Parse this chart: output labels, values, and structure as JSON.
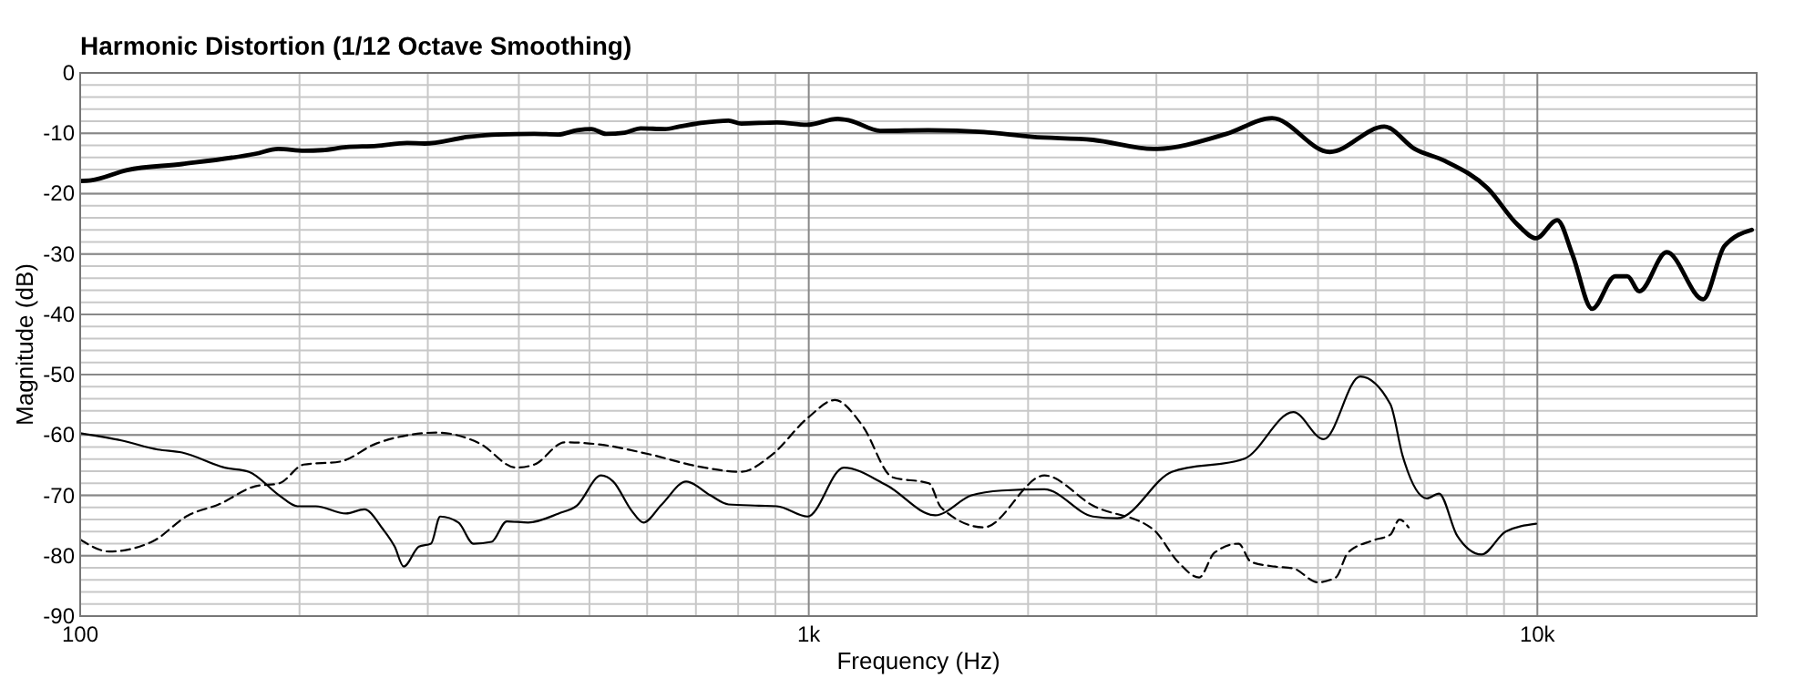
{
  "chart_data": {
    "type": "line",
    "title": "Harmonic Distortion (1/12 Octave Smoothing)",
    "xlabel": "Frequency (Hz)",
    "ylabel": "Magnitude (dB)",
    "log": "x",
    "grid": true,
    "xlim": [
      100,
      20000
    ],
    "ylim": [
      -90,
      0
    ],
    "xticks": [
      100,
      {
        "value": 1000,
        "label": "1k"
      },
      {
        "value": 10000,
        "label": "10k"
      }
    ],
    "yticks": [
      0,
      -10,
      -20,
      -30,
      -40,
      -50,
      -60,
      -70,
      -80,
      -90
    ],
    "series": [
      {
        "color": "#000000",
        "line_style": "solid",
        "x": [
          100,
          103.5,
          116,
          138,
          174,
          187,
          203,
          215,
          232,
          255,
          281,
          297,
          341,
          374,
          420,
          453,
          481,
          503,
          527,
          559,
          588,
          635,
          664,
          711,
          776,
          808,
          905,
          994,
          1096,
          1139,
          1253,
          1461,
          1740,
          2026,
          2455,
          2974,
          3743,
          4323,
          5188,
          6166,
          6787,
          7470,
          8544,
          9404,
          9960,
          10650,
          11180,
          11890,
          12790,
          13290,
          13800,
          15050,
          16890,
          18060,
          19690
        ],
        "values": [
          -17.9,
          -17.8,
          -16.1,
          -15.1,
          -13.4,
          -12.6,
          -12.9,
          -12.8,
          -12.3,
          -12.1,
          -11.6,
          -11.7,
          -10.6,
          -10.2,
          -10.1,
          -10.2,
          -9.5,
          -9.3,
          -10.1,
          -9.9,
          -9.2,
          -9.3,
          -8.9,
          -8.3,
          -7.9,
          -8.4,
          -8.2,
          -8.6,
          -7.6,
          -7.9,
          -9.6,
          -9.5,
          -9.8,
          -10.6,
          -11.1,
          -12.6,
          -10.1,
          -7.5,
          -13.1,
          -8.9,
          -12.6,
          -14.6,
          -19.1,
          -25.2,
          -27.4,
          -24.4,
          -30.2,
          -39.1,
          -33.7,
          -33.7,
          -36.2,
          -29.7,
          -37.5,
          -28.7,
          -26.0
        ]
      },
      {
        "color": "#000000",
        "line_style": "solid",
        "x": [
          100,
          113.9,
          127.8,
          138,
          157.9,
          170.5,
          187.6,
          198.7,
          210.6,
          231.7,
          245.5,
          260,
          270.2,
          278,
          291.7,
          303,
          312,
          330.5,
          346.7,
          367,
          385,
          412,
          453.6,
          480.4,
          518.8,
          539,
          571,
          593,
          628.5,
          678.8,
          733,
          776,
          854.5,
          904.6,
          996,
          1117,
          1278,
          1491,
          1672,
          1841,
          2106,
          2455,
          2651,
          3150,
          3964,
          4624,
          5090,
          5711,
          6284,
          6531,
          7052,
          7328,
          7762,
          8381,
          9048,
          9960
        ],
        "values": [
          -59.7,
          -60.9,
          -62.4,
          -62.9,
          -65.4,
          -66.1,
          -70.0,
          -71.8,
          -71.8,
          -73.0,
          -72.3,
          -75.5,
          -78.5,
          -81.8,
          -78.5,
          -78.0,
          -73.5,
          -74.5,
          -78.0,
          -77.7,
          -74.3,
          -74.5,
          -73.0,
          -71.7,
          -66.7,
          -67.7,
          -72.5,
          -74.5,
          -71.5,
          -67.7,
          -70.0,
          -71.5,
          -71.7,
          -71.8,
          -73.5,
          -65.4,
          -68.3,
          -73.3,
          -70.0,
          -69.2,
          -69.0,
          -73.5,
          -73.8,
          -66.1,
          -63.9,
          -56.2,
          -60.7,
          -50.3,
          -54.9,
          -63.4,
          -70.5,
          -69.7,
          -76.7,
          -79.8,
          -76.0,
          -74.7
        ]
      },
      {
        "color": "#000000",
        "line_style": "dashed",
        "x": [
          100,
          109.6,
          125.4,
          140.7,
          154.9,
          173.8,
          187.6,
          202.6,
          227.3,
          255,
          309,
          353.5,
          396.5,
          420,
          462.4,
          518.8,
          604.8,
          705.1,
          806.6,
          887.6,
          996,
          1086,
          1184,
          1303,
          1462,
          1519,
          1738,
          2106,
          2455,
          2974,
          3211,
          3434,
          3604,
          3890,
          4043,
          4365,
          4624,
          4993,
          5288,
          5495,
          5933,
          6284,
          6468,
          6657
        ],
        "values": [
          -77.3,
          -79.3,
          -77.7,
          -73.3,
          -71.5,
          -68.5,
          -68.0,
          -64.9,
          -64.4,
          -61.4,
          -59.6,
          -61.4,
          -65.4,
          -64.9,
          -61.2,
          -61.6,
          -63.2,
          -65.2,
          -66.1,
          -63.4,
          -57.2,
          -54.2,
          -58.4,
          -67.0,
          -68.0,
          -72.0,
          -75.3,
          -66.7,
          -71.7,
          -75.7,
          -81.0,
          -83.6,
          -79.5,
          -78.0,
          -81.0,
          -81.8,
          -82.1,
          -84.4,
          -83.6,
          -79.5,
          -77.5,
          -76.5,
          -74.0,
          -75.3
        ]
      }
    ]
  }
}
